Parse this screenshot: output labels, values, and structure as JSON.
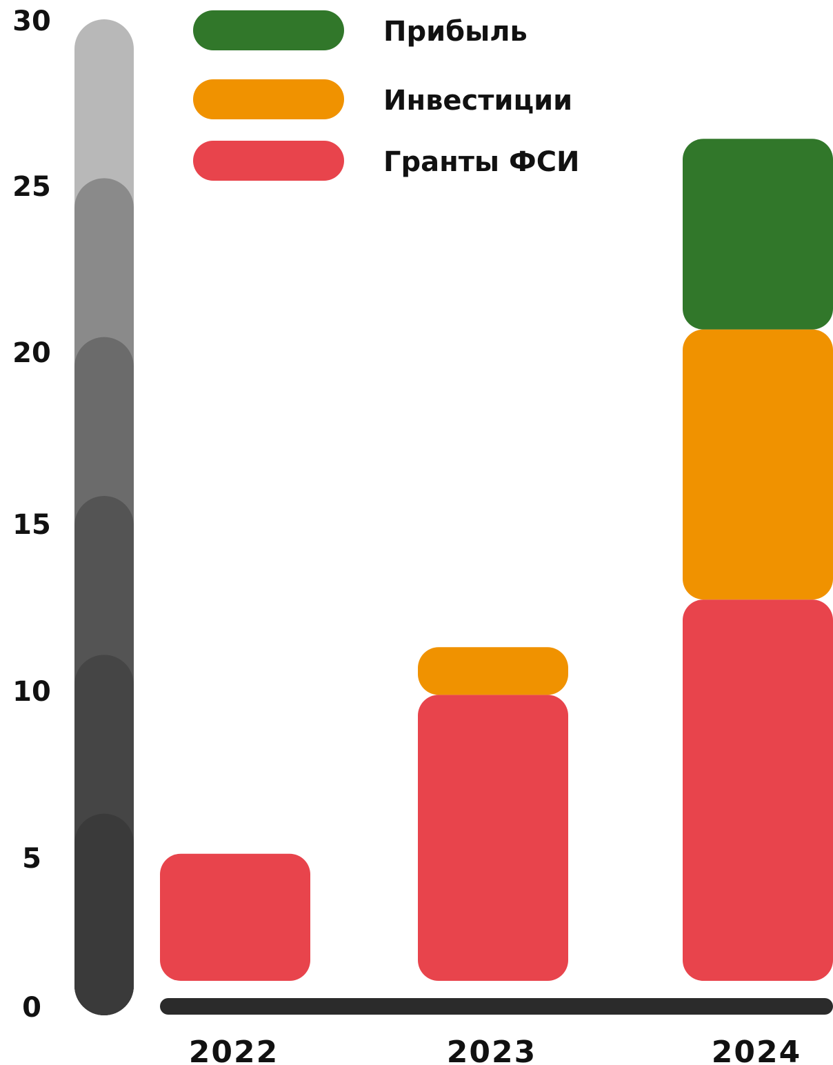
{
  "chart_data": {
    "type": "bar",
    "stacked": true,
    "categories": [
      "2022",
      "2023",
      "2024"
    ],
    "series": [
      {
        "name": "Гранты ФСИ",
        "color": "#e8444c",
        "values": [
          4,
          9,
          12
        ]
      },
      {
        "name": "Инвестиции",
        "color": "#f09200",
        "values": [
          0,
          1.5,
          8.5
        ]
      },
      {
        "name": "Прибыль",
        "color": "#31772a",
        "values": [
          0,
          0,
          6
        ]
      }
    ],
    "ylim": [
      0,
      30
    ],
    "yticks": [
      "0",
      "5",
      "10",
      "15",
      "20",
      "25",
      "30"
    ],
    "legend_order": [
      "Прибыль",
      "Инвестиции",
      "Гранты ФСИ"
    ],
    "legend_position": "top",
    "axis_bar_colors": [
      "#3a3a3a",
      "#454545",
      "#545454",
      "#6b6b6b",
      "#8a8a8a",
      "#b8b8b8"
    ],
    "baseline_color": "#2b2b2b",
    "grid": false,
    "title": "",
    "xlabel": "",
    "ylabel": ""
  }
}
